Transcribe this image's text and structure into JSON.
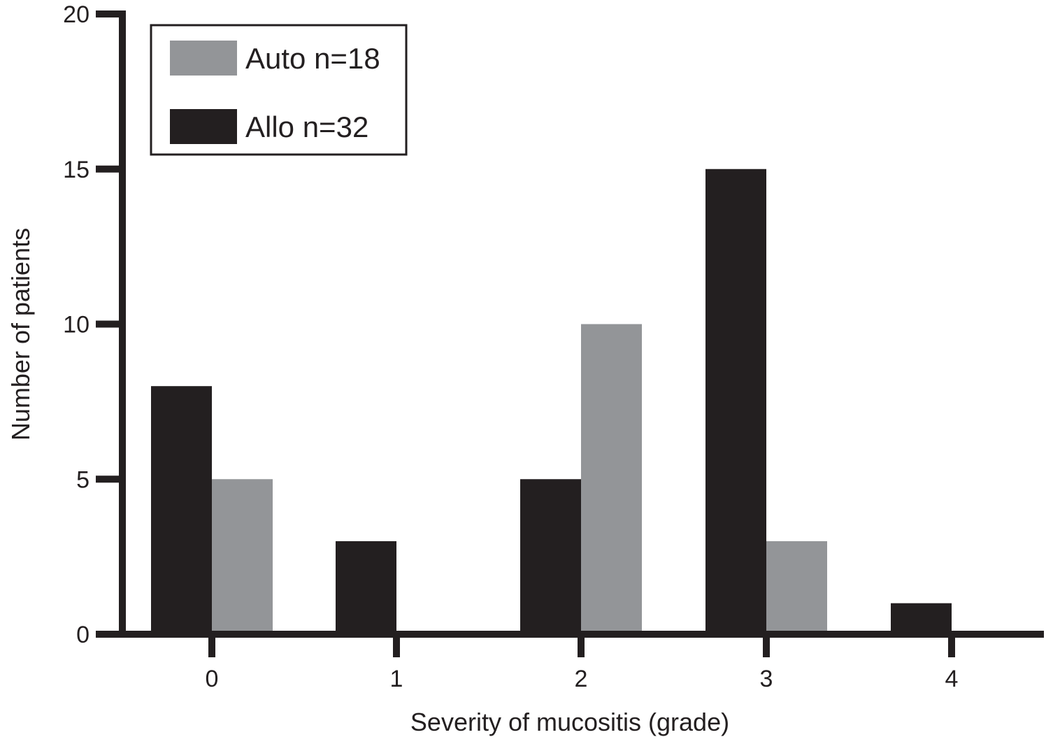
{
  "chart_data": {
    "type": "bar",
    "xlabel": "Severity of mucositis (grade)",
    "ylabel": "Number of patients",
    "categories": [
      "0",
      "1",
      "2",
      "3",
      "4"
    ],
    "ylim": [
      0,
      20
    ],
    "yticks": [
      "0",
      "5",
      "10",
      "15",
      "20"
    ],
    "series": [
      {
        "name": "Allo n=32",
        "values": [
          8,
          3,
          5,
          15,
          1
        ],
        "color": "#231f20"
      },
      {
        "name": "Auto n=18",
        "values": [
          5,
          0,
          10,
          3,
          0
        ],
        "color": "#939598"
      }
    ],
    "legend": {
      "position": "top-left",
      "items": [
        {
          "label": "Auto n=18",
          "color": "#939598"
        },
        {
          "label": "Allo n=32",
          "color": "#231f20"
        }
      ]
    },
    "grid": false
  }
}
